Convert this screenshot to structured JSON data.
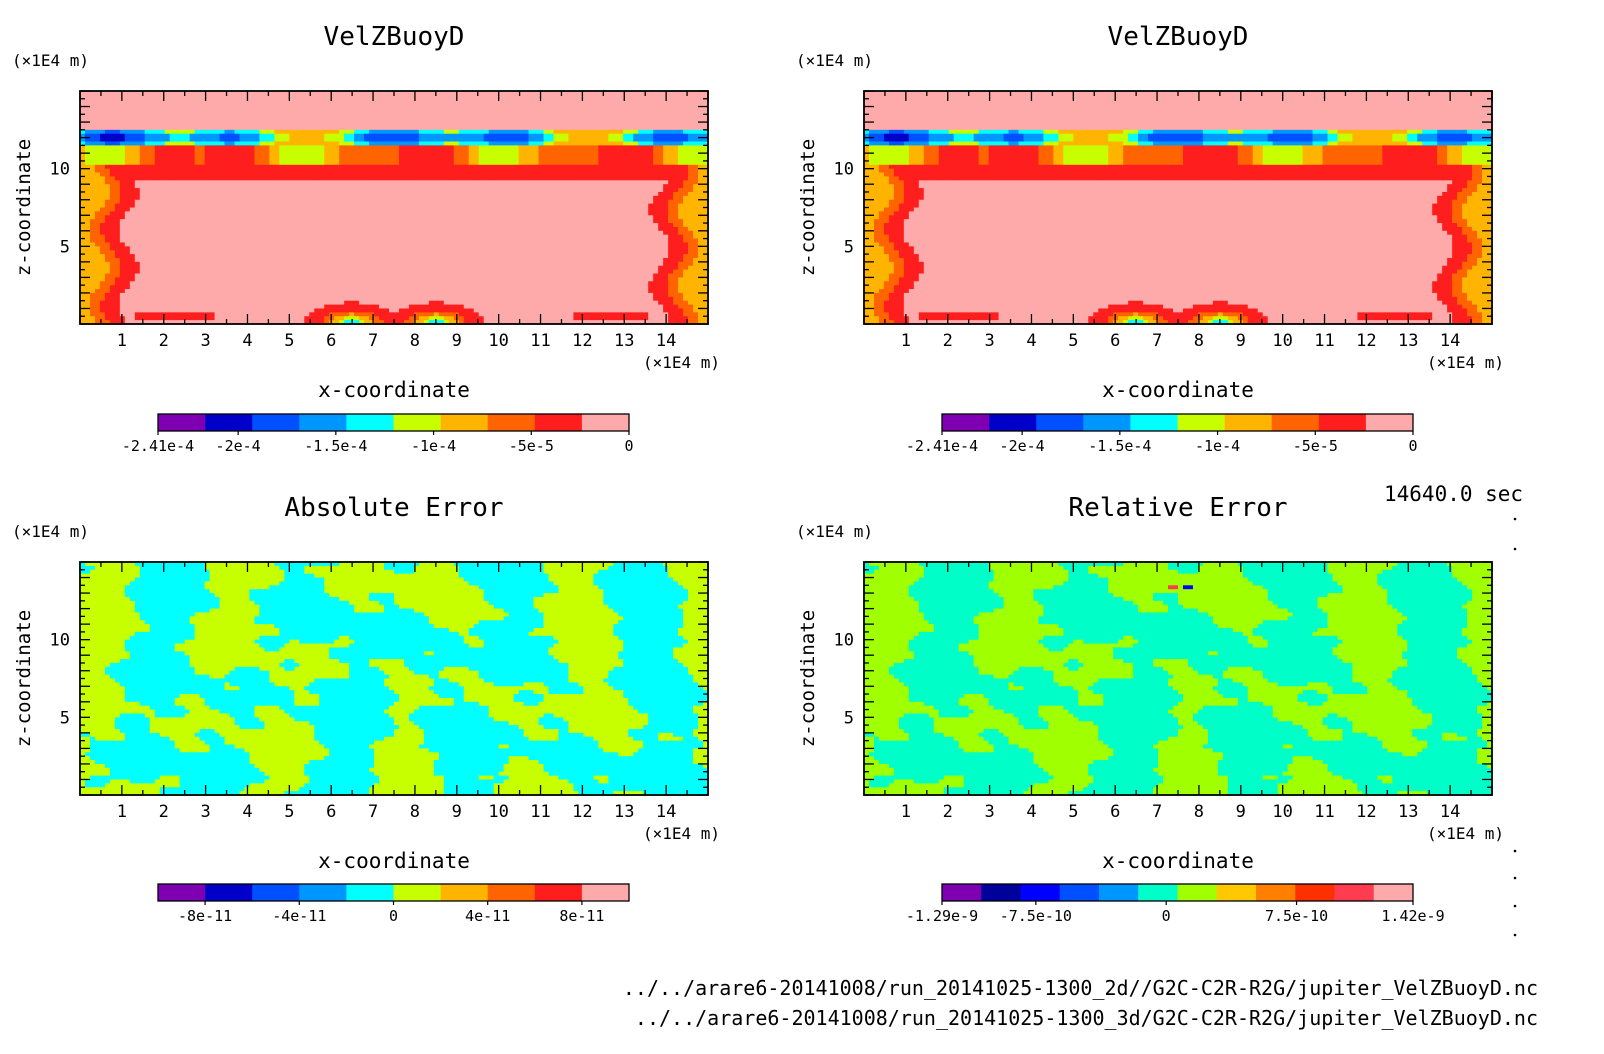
{
  "time_label": "14640.0 sec",
  "footer": {
    "line1": "../../arare6-20141008/run_20141025-1300_2d//G2C-C2R-R2G/jupiter_VelZBuoyD.nc",
    "line2": "../../arare6-20141008/run_20141025-1300_3d/G2C-C2R-R2G/jupiter_VelZBuoyD.nc"
  },
  "colors": {
    "velz": [
      "#7f00b3",
      "#0000c8",
      "#0050ff",
      "#0096ff",
      "#00ffff",
      "#c8ff00",
      "#ffb400",
      "#ff6400",
      "#ff1e1e",
      "#ffaaaa"
    ],
    "abs": [
      "#7f00b3",
      "#0000c8",
      "#0050ff",
      "#0096ff",
      "#00ffff",
      "#c8ff00",
      "#ffb400",
      "#ff6400",
      "#ff1e1e",
      "#ffaaaa"
    ],
    "rel": [
      "#7f00b3",
      "#00009a",
      "#0000ff",
      "#0050ff",
      "#0096ff",
      "#00ffc8",
      "#a0ff00",
      "#ffc800",
      "#ff8000",
      "#ff3000",
      "#ff3c50",
      "#ffaaaa"
    ]
  },
  "chart_data": [
    {
      "type": "heatmap",
      "title": "VelZBuoyD",
      "xlabel": "x-coordinate",
      "ylabel": "z-coordinate",
      "x_unit": "(×1E4 m)",
      "y_unit": "(×1E4 m)",
      "xlim": [
        0,
        15
      ],
      "ylim": [
        0,
        15
      ],
      "x_ticks": [
        1,
        2,
        3,
        4,
        5,
        6,
        7,
        8,
        9,
        10,
        11,
        12,
        13,
        14
      ],
      "y_ticks": [
        5,
        10
      ],
      "colorbar": {
        "min": -0.000241,
        "max": 0,
        "tick_values": [
          -0.000241,
          -0.0002,
          -0.00015,
          -0.0001,
          -5e-05,
          0
        ],
        "tick_labels": [
          "-2.41e-4",
          "-2e-4",
          "-1.5e-4",
          "-1e-4",
          "-5e-5",
          "0"
        ]
      }
    },
    {
      "type": "heatmap",
      "title": "VelZBuoyD",
      "xlabel": "x-coordinate",
      "ylabel": "z-coordinate",
      "x_unit": "(×1E4 m)",
      "y_unit": "(×1E4 m)",
      "xlim": [
        0,
        15
      ],
      "ylim": [
        0,
        15
      ],
      "x_ticks": [
        1,
        2,
        3,
        4,
        5,
        6,
        7,
        8,
        9,
        10,
        11,
        12,
        13,
        14
      ],
      "y_ticks": [
        5,
        10
      ],
      "colorbar": {
        "min": -0.000241,
        "max": 0,
        "tick_values": [
          -0.000241,
          -0.0002,
          -0.00015,
          -0.0001,
          -5e-05,
          0
        ],
        "tick_labels": [
          "-2.41e-4",
          "-2e-4",
          "-1.5e-4",
          "-1e-4",
          "-5e-5",
          "0"
        ]
      }
    },
    {
      "type": "heatmap",
      "title": "Absolute Error",
      "xlabel": "x-coordinate",
      "ylabel": "z-coordinate",
      "x_unit": "(×1E4 m)",
      "y_unit": "(×1E4 m)",
      "xlim": [
        0,
        15
      ],
      "ylim": [
        0,
        15
      ],
      "x_ticks": [
        1,
        2,
        3,
        4,
        5,
        6,
        7,
        8,
        9,
        10,
        11,
        12,
        13,
        14
      ],
      "y_ticks": [
        5,
        10
      ],
      "colorbar": {
        "min": -1e-10,
        "max": 1e-10,
        "tick_values": [
          -8e-11,
          -4e-11,
          0,
          4e-11,
          8e-11
        ],
        "tick_labels": [
          "-8e-11",
          "-4e-11",
          "0",
          "4e-11",
          "8e-11"
        ]
      }
    },
    {
      "type": "heatmap",
      "title": "Relative Error",
      "xlabel": "x-coordinate",
      "ylabel": "z-coordinate",
      "x_unit": "(×1E4 m)",
      "y_unit": "(×1E4 m)",
      "xlim": [
        0,
        15
      ],
      "ylim": [
        0,
        15
      ],
      "x_ticks": [
        1,
        2,
        3,
        4,
        5,
        6,
        7,
        8,
        9,
        10,
        11,
        12,
        13,
        14
      ],
      "y_ticks": [
        5,
        10
      ],
      "colorbar": {
        "min": -1.29e-09,
        "max": 1.42e-09,
        "tick_values": [
          -1.29e-09,
          -7.5e-10,
          0,
          7.5e-10,
          1.42e-09
        ],
        "tick_labels": [
          "-1.29e-9",
          "-7.5e-10",
          "0",
          "7.5e-10",
          "1.42e-9"
        ]
      }
    }
  ]
}
